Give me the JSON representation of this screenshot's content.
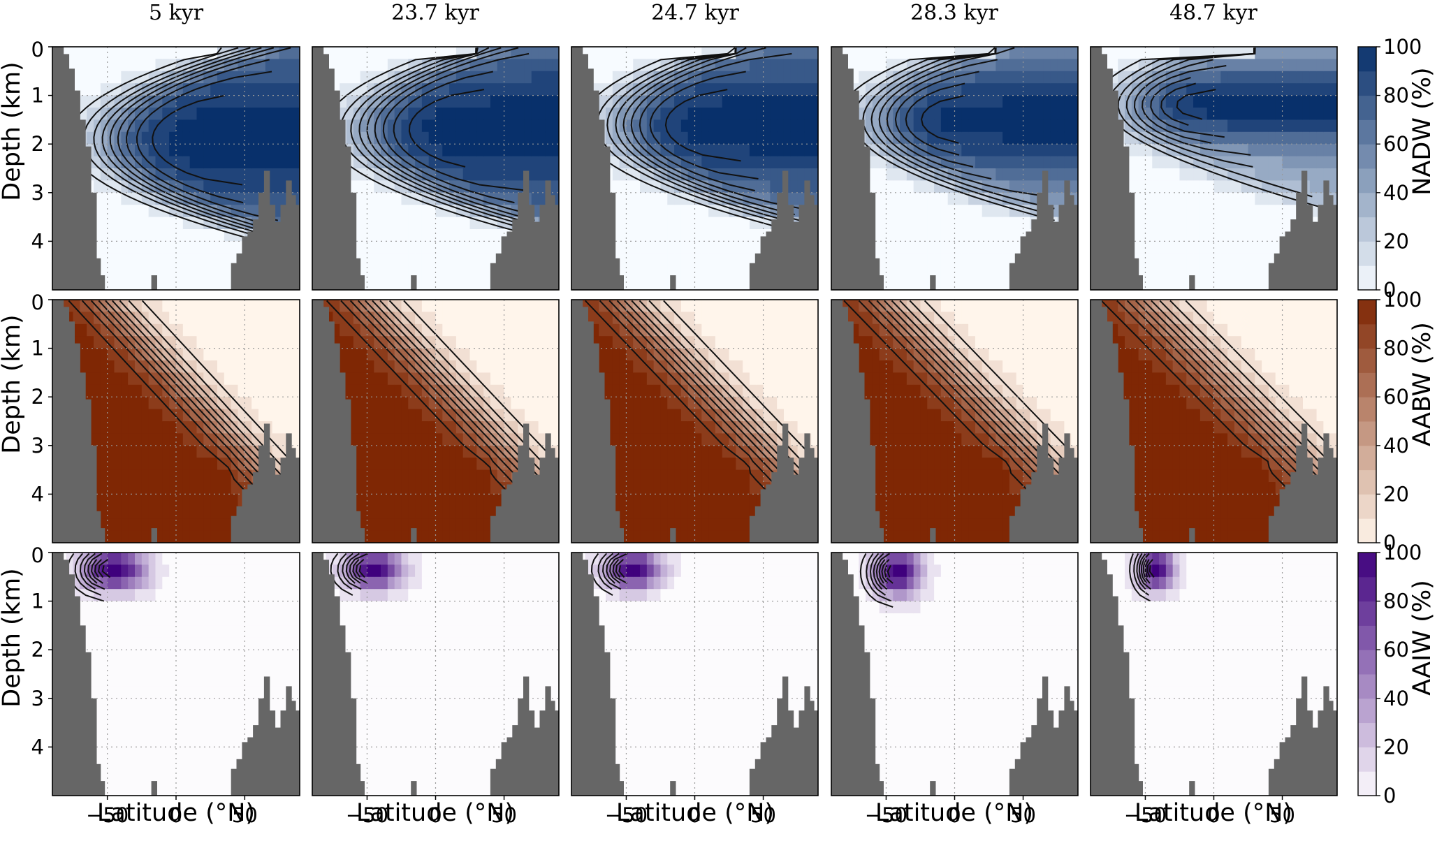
{
  "chart_data": {
    "type": "heatmap",
    "columns": [
      "5 kyr",
      "23.7 kyr",
      "24.7 kyr",
      "28.3 kyr",
      "48.7 kyr"
    ],
    "rows": [
      {
        "key": "nadw",
        "colorbar_label": "NADW (%)",
        "colors": {
          "low": "#f7fbff",
          "high": "#08306b"
        }
      },
      {
        "key": "aabw",
        "colorbar_label": "AABW (%)",
        "colors": {
          "low": "#fff5eb",
          "high": "#7f2704"
        }
      },
      {
        "key": "aaiw",
        "colorbar_label": "AAIW (%)",
        "colors": {
          "low": "#fcfbfd",
          "high": "#3f007d"
        }
      }
    ],
    "xlabel": "Latitude (°N)",
    "ylabel": "Depth (km)",
    "xlim": [
      -90,
      90
    ],
    "ylim": [
      5,
      0
    ],
    "xticks": [
      "-50",
      "0",
      "50"
    ],
    "yticks": [
      "0",
      "1",
      "2",
      "3",
      "4"
    ],
    "colorbar_ticks": [
      "0",
      "20",
      "40",
      "60",
      "80",
      "100"
    ],
    "colorbar_range": [
      0,
      100
    ],
    "grid": "dotted",
    "land_color": "#666666"
  }
}
